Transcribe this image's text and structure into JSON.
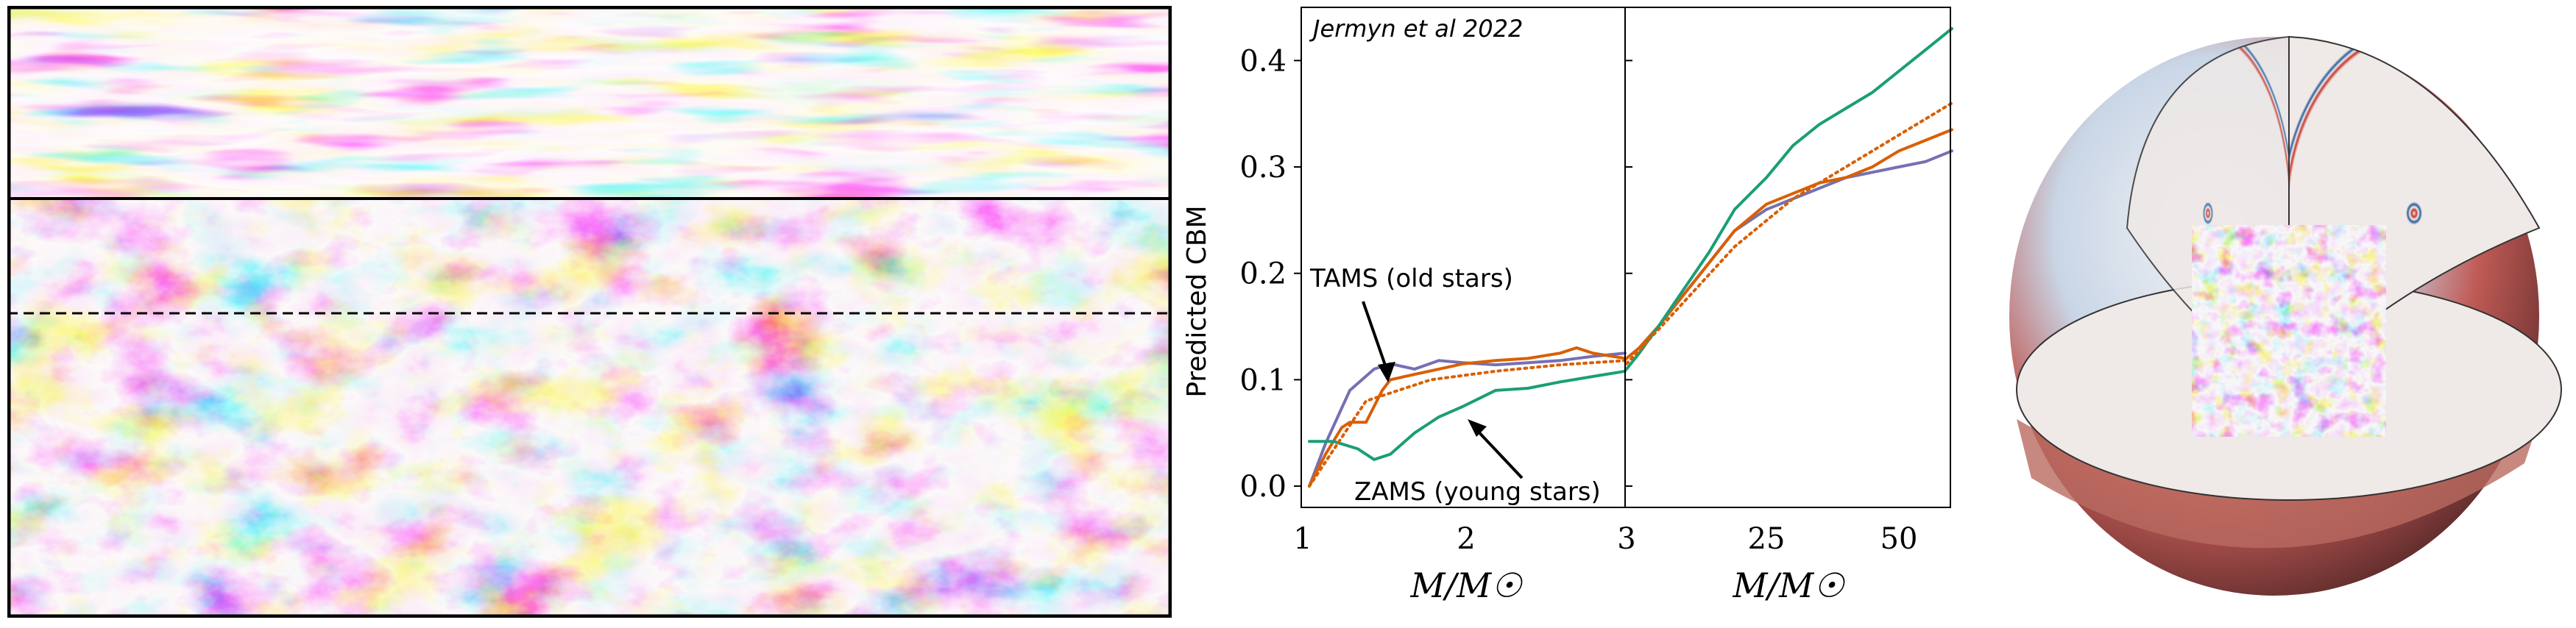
{
  "colors": {
    "red": "#a51f24",
    "blue": "#1f5e99",
    "green": "#1b9e77",
    "orange": "#d95f02",
    "purple": "#7570b3"
  },
  "chart_data": [
    {
      "type": "line",
      "panel": "left",
      "citation": "Jermyn et al 2022",
      "ylabel": "Predicted CBM",
      "xlabel": "M/M☉",
      "x_tick_labels": [
        "1",
        "2",
        "3"
      ],
      "xlim": [
        1,
        3
      ],
      "ylim": [
        -0.02,
        0.45
      ],
      "y_ticks": [
        0.0,
        0.1,
        0.2,
        0.3,
        0.4
      ],
      "y_tick_labels": [
        "0.0",
        "0.1",
        "0.2",
        "0.3",
        "0.4"
      ],
      "annotations": [
        {
          "text": "TAMS (old stars)",
          "points_to": "purple"
        },
        {
          "text": "ZAMS (young stars)",
          "points_to": "green"
        }
      ],
      "series": [
        {
          "key": "tams",
          "color": "purple",
          "style": "solid",
          "x": [
            1.05,
            1.15,
            1.3,
            1.45,
            1.55,
            1.7,
            1.85,
            2.0,
            2.2,
            2.4,
            2.6,
            2.8,
            3.0
          ],
          "y": [
            0.0,
            0.04,
            0.09,
            0.11,
            0.115,
            0.11,
            0.118,
            0.116,
            0.114,
            0.116,
            0.118,
            0.122,
            0.125
          ]
        },
        {
          "key": "mid",
          "color": "orange",
          "style": "solid",
          "x": [
            1.05,
            1.15,
            1.25,
            1.3,
            1.4,
            1.5,
            1.55,
            1.7,
            1.85,
            2.0,
            2.2,
            2.4,
            2.6,
            2.7,
            2.8,
            3.0
          ],
          "y": [
            0.0,
            0.03,
            0.055,
            0.06,
            0.06,
            0.09,
            0.1,
            0.105,
            0.11,
            0.115,
            0.118,
            0.12,
            0.125,
            0.13,
            0.125,
            0.12
          ]
        },
        {
          "key": "zams",
          "color": "green",
          "style": "solid",
          "x": [
            1.05,
            1.2,
            1.35,
            1.45,
            1.55,
            1.7,
            1.85,
            2.0,
            2.2,
            2.4,
            2.6,
            2.8,
            3.0
          ],
          "y": [
            0.042,
            0.042,
            0.035,
            0.025,
            0.03,
            0.05,
            0.065,
            0.075,
            0.09,
            0.092,
            0.098,
            0.103,
            0.108
          ]
        },
        {
          "key": "fit",
          "color": "orange",
          "style": "dotted",
          "x": [
            1.05,
            1.4,
            1.8,
            2.2,
            2.6,
            3.0
          ],
          "y": [
            0.0,
            0.08,
            0.1,
            0.108,
            0.114,
            0.118
          ]
        }
      ]
    },
    {
      "type": "line",
      "panel": "right",
      "xlabel": "M/M☉",
      "x_tick_labels": [
        "3",
        "25",
        "50"
      ],
      "xlim": [
        3,
        60
      ],
      "ylim": [
        -0.02,
        0.45
      ],
      "series": [
        {
          "key": "tams",
          "color": "purple",
          "style": "solid",
          "x": [
            3,
            5,
            8,
            12,
            16,
            20,
            25,
            30,
            35,
            40,
            45,
            50,
            55,
            60
          ],
          "y": [
            0.12,
            0.13,
            0.15,
            0.18,
            0.21,
            0.24,
            0.26,
            0.27,
            0.28,
            0.29,
            0.295,
            0.3,
            0.305,
            0.315
          ]
        },
        {
          "key": "mid",
          "color": "orange",
          "style": "solid",
          "x": [
            3,
            5,
            8,
            12,
            16,
            20,
            25,
            30,
            35,
            40,
            45,
            50,
            55,
            60
          ],
          "y": [
            0.12,
            0.13,
            0.15,
            0.18,
            0.21,
            0.24,
            0.265,
            0.275,
            0.285,
            0.29,
            0.3,
            0.315,
            0.325,
            0.335
          ]
        },
        {
          "key": "zams",
          "color": "green",
          "style": "solid",
          "x": [
            3,
            5,
            8,
            12,
            16,
            20,
            25,
            30,
            35,
            40,
            45,
            50,
            55,
            60
          ],
          "y": [
            0.11,
            0.125,
            0.15,
            0.185,
            0.22,
            0.26,
            0.29,
            0.32,
            0.34,
            0.355,
            0.37,
            0.39,
            0.41,
            0.43
          ]
        },
        {
          "key": "fit",
          "color": "orange",
          "style": "dotted",
          "x": [
            3,
            10,
            20,
            30,
            40,
            50,
            60
          ],
          "y": [
            0.115,
            0.16,
            0.225,
            0.27,
            0.3,
            0.33,
            0.36
          ]
        }
      ]
    }
  ]
}
